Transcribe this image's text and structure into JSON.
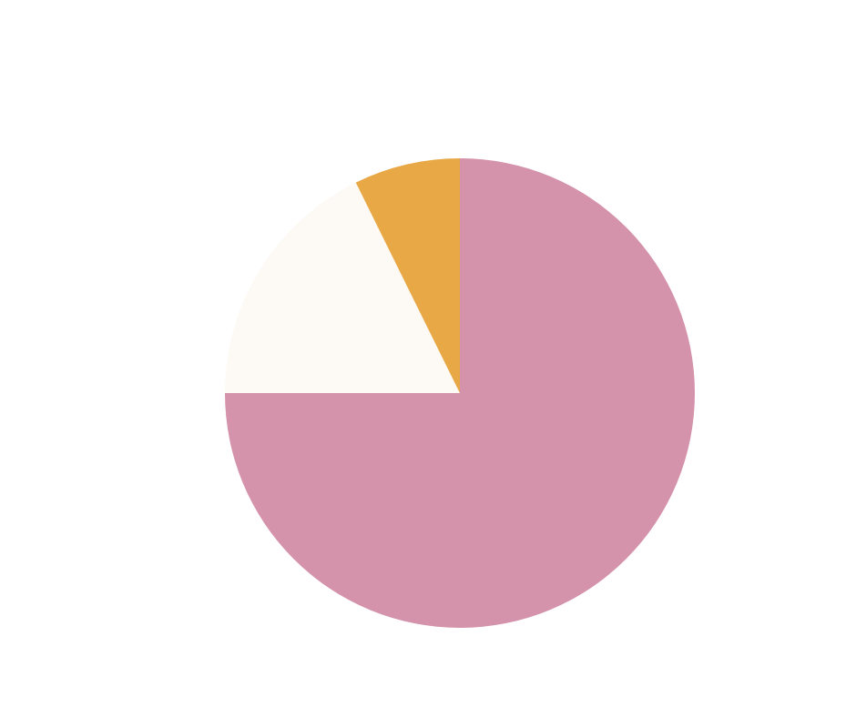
{
  "chart_data": {
    "type": "pie",
    "values": [
      75,
      17.7,
      7.3
    ],
    "colors": [
      "#d492ab",
      "#fdf9f4",
      "#e8a845"
    ]
  }
}
